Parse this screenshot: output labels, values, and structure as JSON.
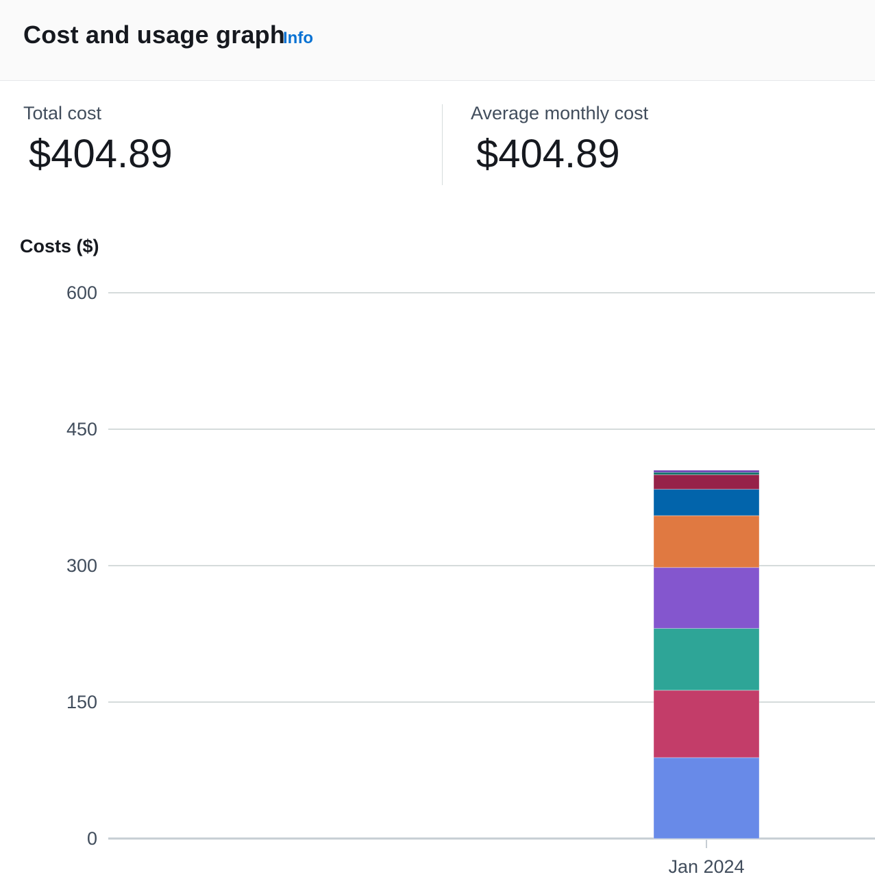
{
  "header": {
    "title": "Cost and usage graph",
    "info_label": "Info"
  },
  "metrics": {
    "total_cost_label": "Total cost",
    "total_cost_value": "$404.89",
    "average_monthly_label": "Average monthly cost",
    "average_monthly_value": "$404.89"
  },
  "colors": {
    "accent_link": "#0972d3",
    "gridline": "#d5dbdb"
  },
  "chart_data": {
    "type": "bar",
    "stacked": true,
    "ylabel": "Costs ($)",
    "ylim": [
      0,
      600
    ],
    "yticks": [
      0,
      150,
      300,
      450,
      600
    ],
    "categories": [
      "Jan 2024"
    ],
    "grid": true,
    "series": [
      {
        "values": [
          89
        ],
        "color": "#688ae8"
      },
      {
        "values": [
          74
        ],
        "color": "#c33d69"
      },
      {
        "values": [
          68
        ],
        "color": "#2ea597"
      },
      {
        "values": [
          67
        ],
        "color": "#8456ce"
      },
      {
        "values": [
          57
        ],
        "color": "#e07941"
      },
      {
        "values": [
          29
        ],
        "color": "#0264ab"
      },
      {
        "values": [
          16
        ],
        "color": "#962249"
      },
      {
        "values": [
          2.5
        ],
        "color": "#096f64"
      },
      {
        "values": [
          2.39
        ],
        "color": "#6b40b2"
      }
    ]
  }
}
